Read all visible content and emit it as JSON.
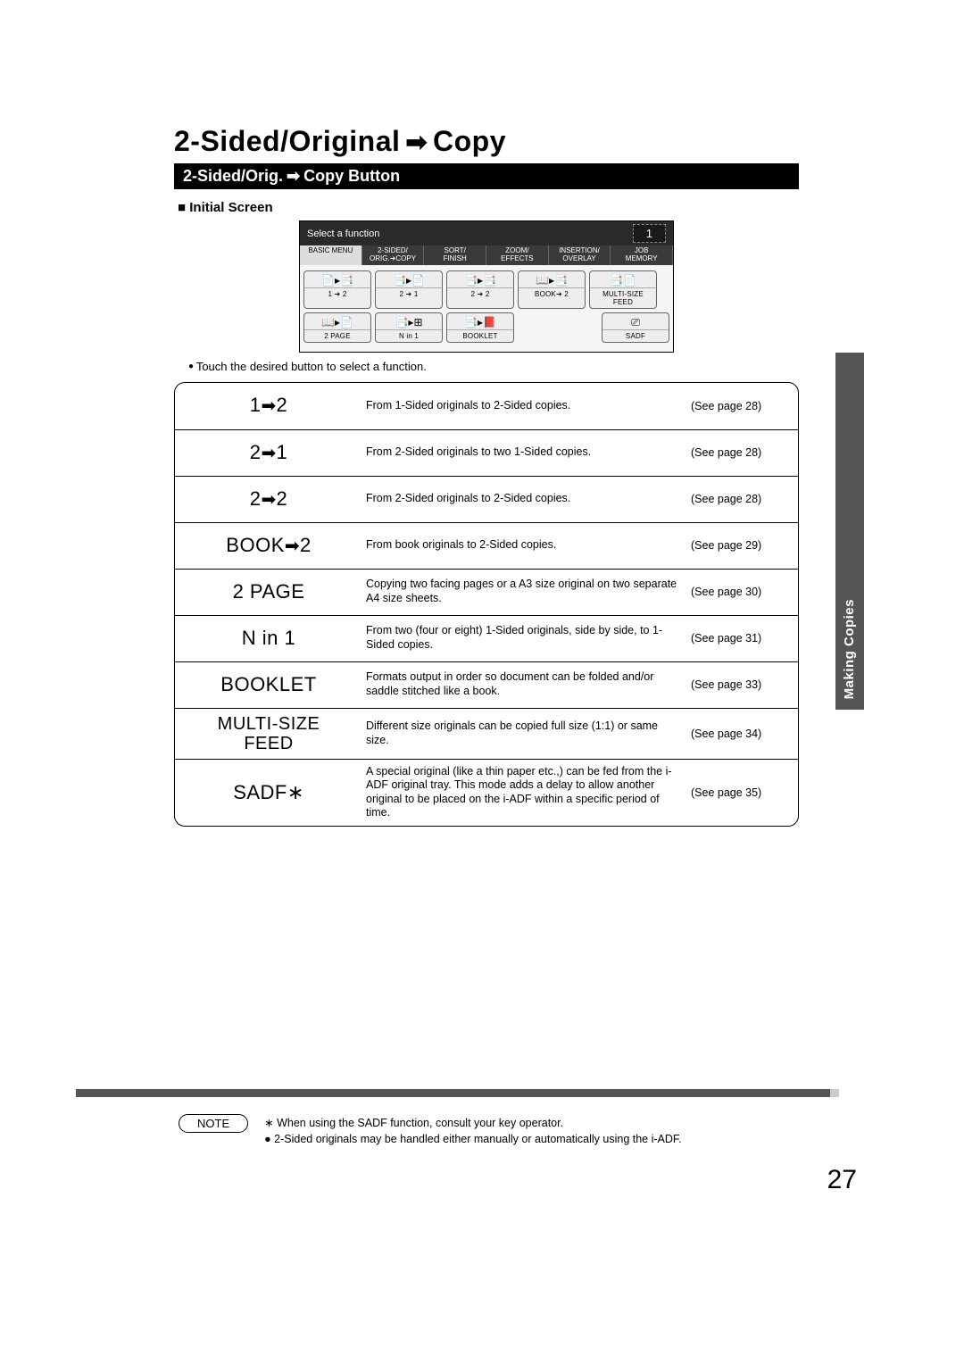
{
  "title_left": "2-Sided/Original",
  "title_right": "Copy",
  "subtitle_left": "2-Sided/Orig.",
  "subtitle_right": "Copy Button",
  "initial_screen_label": "Initial Screen",
  "lcd": {
    "header_text": "Select a function",
    "counter": "1",
    "tabs": [
      "BASIC MENU",
      "2-SIDED/\nORIG.➜COPY",
      "SORT/\nFINISH",
      "ZOOM/\nEFFECTS",
      "INSERTION/\nOVERLAY",
      "JOB\nMEMORY"
    ],
    "row1": [
      {
        "icon": "📄▸📑",
        "label": "1 ➜ 2"
      },
      {
        "icon": "📑▸📄",
        "label": "2 ➜ 1"
      },
      {
        "icon": "📑▸📑",
        "label": "2 ➜ 2"
      },
      {
        "icon": "📖▸📑",
        "label": "BOOK➜ 2"
      },
      {
        "icon": "📑📄",
        "label": "MULTI-SIZE\nFEED"
      }
    ],
    "row2": [
      {
        "icon": "📖▸📄",
        "label": "2 PAGE"
      },
      {
        "icon": "📑▸⊞",
        "label": "N in 1"
      },
      {
        "icon": "📑▸📕",
        "label": "BOOKLET"
      }
    ],
    "row2_right": {
      "icon": "⎚",
      "label": "SADF"
    }
  },
  "instruction": "Touch the desired button to select a function.",
  "rows": [
    {
      "name_pre": "1",
      "name_post": "2",
      "arrow": true,
      "desc": "From 1-Sided originals to 2-Sided copies.",
      "ref": "(See page 28)"
    },
    {
      "name_pre": "2",
      "name_post": "1",
      "arrow": true,
      "desc": "From 2-Sided originals to two 1-Sided copies.",
      "ref": "(See page 28)"
    },
    {
      "name_pre": "2",
      "name_post": "2",
      "arrow": true,
      "desc": "From 2-Sided originals to 2-Sided copies.",
      "ref": "(See page 28)"
    },
    {
      "name_pre": "BOOK",
      "name_post": "2",
      "arrow": true,
      "desc": "From book originals to 2-Sided copies.",
      "ref": "(See page 29)"
    },
    {
      "name": "2 PAGE",
      "desc": "Copying two facing pages or a A3 size original on two separate A4 size sheets.",
      "ref": "(See page 30)"
    },
    {
      "name": "N in 1",
      "desc": "From two (four or eight) 1-Sided originals, side by side, to 1-Sided copies.",
      "ref": "(See page 31)"
    },
    {
      "name": "BOOKLET",
      "desc": "Formats output in order so document can be folded and/or saddle stitched like a book.",
      "ref": "(See page 33)"
    },
    {
      "name": "MULTI-SIZE\nFEED",
      "two_line": true,
      "desc": "Different size originals can be copied full size (1:1) or same size.",
      "ref": "(See page 34)"
    },
    {
      "name": "SADF∗",
      "desc": "A special original (like a thin paper etc.,) can be fed from the i-ADF original tray. This mode adds a delay to allow another original to be placed on the i-ADF within a specific period of time.",
      "ref": "(See page 35)"
    }
  ],
  "side_tab": "Making Copies",
  "note_label": "NOTE",
  "note_lines": [
    "∗ When using the SADF function, consult your key operator.",
    "● 2-Sided originals may be handled either manually or automatically using the i-ADF."
  ],
  "page_number": "27"
}
